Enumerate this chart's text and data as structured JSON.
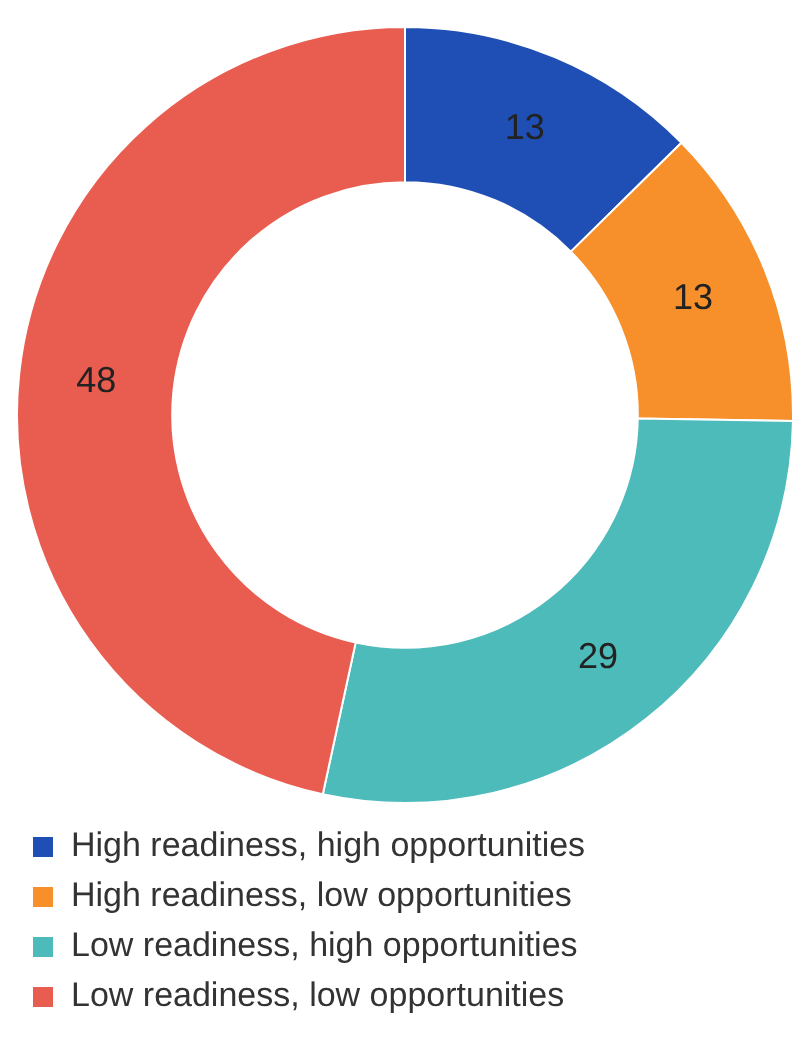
{
  "chart_data": {
    "type": "donut",
    "categories": [
      "High readiness, high opportunities",
      "High readiness, low opportunities",
      "Low readiness, high opportunities",
      "Low readiness, low opportunities"
    ],
    "values": [
      13,
      13,
      29,
      48
    ],
    "colors": [
      "#1f4fb5",
      "#f7902b",
      "#4cbbba",
      "#e95c50"
    ],
    "data_labels": true,
    "legend": "bottom"
  }
}
